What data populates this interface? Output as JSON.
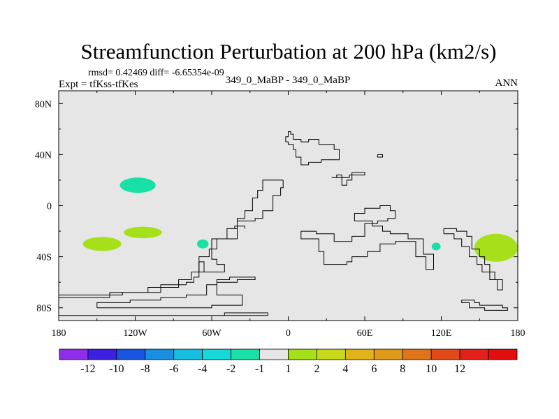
{
  "chart_data": {
    "type": "heatmap",
    "title": "Streamfunction Perturbation at 200 hPa (km2/s)",
    "stats": "rmsd= 0.42469 diff= -6.65354e-09",
    "left_label": "Expt = tfKss-tfKes",
    "center_label": "349_0_MaBP - 349_0_MaBP",
    "right_label": "ANN",
    "xlim": [
      -180,
      180
    ],
    "ylim": [
      -90,
      90
    ],
    "x_ticks": [
      {
        "value": -180,
        "label": "180"
      },
      {
        "value": -120,
        "label": "120W"
      },
      {
        "value": -60,
        "label": "60W"
      },
      {
        "value": 0,
        "label": "0"
      },
      {
        "value": 60,
        "label": "60E"
      },
      {
        "value": 120,
        "label": "120E"
      },
      {
        "value": 180,
        "label": "180"
      }
    ],
    "y_ticks": [
      {
        "value": 80,
        "label": "80N"
      },
      {
        "value": 40,
        "label": "40N"
      },
      {
        "value": 0,
        "label": "0"
      },
      {
        "value": -40,
        "label": "40S"
      },
      {
        "value": -80,
        "label": "80S"
      }
    ],
    "background_color": "#e6e6e6",
    "colorbar": {
      "colors": [
        "#8f2ee8",
        "#3c20e0",
        "#1a55e0",
        "#1a8ee0",
        "#18bde0",
        "#18d8d8",
        "#18e0a6",
        "#e6e6e6",
        "#a6e01a",
        "#c8d81a",
        "#e0b41a",
        "#e09a1a",
        "#e0741a",
        "#e04a1a",
        "#e0201a",
        "#e00e0e"
      ],
      "labels": [
        "-12",
        "-10",
        "-8",
        "-6",
        "-4",
        "-2",
        "-1",
        "1",
        "2",
        "4",
        "6",
        "8",
        "10",
        "12"
      ]
    },
    "anomalies": [
      {
        "name": "north-pacific-negative",
        "lon": -118,
        "lat": 16,
        "rlon": 14,
        "rlat": 6,
        "color": "#18e0a6"
      },
      {
        "name": "south-pacific-west-positive",
        "lon": -146,
        "lat": -30,
        "rlon": 15,
        "rlat": 5.5,
        "color": "#a6e01a"
      },
      {
        "name": "south-pacific-central-positive",
        "lon": -114,
        "lat": -21,
        "rlon": 15,
        "rlat": 4.5,
        "color": "#a6e01a"
      },
      {
        "name": "south-america-negative",
        "lon": -67,
        "lat": -30,
        "rlon": 4.5,
        "rlat": 3.5,
        "color": "#18e0a6"
      },
      {
        "name": "indian-ocean-negative",
        "lon": 116,
        "lat": -32,
        "rlon": 3.5,
        "rlat": 3,
        "color": "#18e0a6"
      },
      {
        "name": "australia-positive",
        "lon": 163,
        "lat": -33,
        "rlon": 17,
        "rlat": 11,
        "color": "#a6e01a"
      }
    ],
    "coastlines": [
      [
        [
          -4,
          20
        ],
        [
          -4,
          14
        ],
        [
          -6,
          14
        ],
        [
          -6,
          8
        ],
        [
          -12,
          8
        ],
        [
          -12,
          -4
        ],
        [
          -20,
          -4
        ],
        [
          -20,
          -10
        ],
        [
          -26,
          -10
        ],
        [
          -26,
          -12
        ],
        [
          -40,
          -12
        ],
        [
          -40,
          -26
        ],
        [
          -60,
          -26
        ],
        [
          -60,
          -42
        ],
        [
          -56,
          -42
        ],
        [
          -56,
          -46
        ],
        [
          -50,
          -46
        ],
        [
          -50,
          -52
        ],
        [
          -70,
          -52
        ],
        [
          -70,
          -40
        ],
        [
          -62,
          -40
        ],
        [
          -62,
          -34
        ],
        [
          -56,
          -34
        ],
        [
          -56,
          -26
        ],
        [
          -48,
          -26
        ],
        [
          -48,
          -18
        ],
        [
          -40,
          -18
        ],
        [
          -40,
          -10
        ],
        [
          -34,
          -10
        ],
        [
          -34,
          -4
        ],
        [
          -28,
          -4
        ],
        [
          -28,
          6
        ],
        [
          -24,
          6
        ],
        [
          -24,
          12
        ],
        [
          -20,
          12
        ],
        [
          -20,
          20
        ],
        [
          -12,
          20
        ],
        [
          -4,
          20
        ]
      ],
      [
        [
          0,
          56
        ],
        [
          0,
          58
        ],
        [
          2,
          58
        ],
        [
          2,
          56
        ],
        [
          4,
          56
        ],
        [
          4,
          52
        ],
        [
          10,
          52
        ],
        [
          10,
          50
        ],
        [
          16,
          50
        ],
        [
          16,
          52
        ],
        [
          24,
          52
        ],
        [
          24,
          48
        ],
        [
          36,
          48
        ],
        [
          36,
          44
        ],
        [
          40,
          44
        ],
        [
          40,
          36
        ],
        [
          26,
          36
        ],
        [
          26,
          34
        ],
        [
          16,
          34
        ],
        [
          16,
          32
        ],
        [
          10,
          32
        ],
        [
          10,
          38
        ],
        [
          6,
          38
        ],
        [
          6,
          44
        ],
        [
          4,
          44
        ],
        [
          4,
          48
        ],
        [
          0,
          48
        ],
        [
          0,
          50
        ],
        [
          -2,
          50
        ],
        [
          -2,
          54
        ],
        [
          0,
          54
        ],
        [
          0,
          56
        ]
      ],
      [
        [
          34,
          22
        ],
        [
          38,
          22
        ],
        [
          38,
          24
        ],
        [
          42,
          24
        ],
        [
          42,
          16
        ],
        [
          46,
          16
        ],
        [
          46,
          20
        ],
        [
          50,
          20
        ],
        [
          50,
          26
        ],
        [
          60,
          26
        ],
        [
          60,
          24
        ],
        [
          48,
          24
        ],
        [
          48,
          22
        ],
        [
          34,
          22
        ]
      ],
      [
        [
          70,
          40
        ],
        [
          74,
          40
        ],
        [
          74,
          38
        ],
        [
          70,
          38
        ],
        [
          70,
          40
        ]
      ],
      [
        [
          10,
          -20
        ],
        [
          10,
          -26
        ],
        [
          24,
          -26
        ],
        [
          24,
          -36
        ],
        [
          28,
          -36
        ],
        [
          28,
          -46
        ],
        [
          46,
          -46
        ],
        [
          46,
          -44
        ],
        [
          50,
          -44
        ],
        [
          50,
          -40
        ],
        [
          62,
          -40
        ],
        [
          62,
          -36
        ],
        [
          72,
          -36
        ],
        [
          72,
          -30
        ],
        [
          84,
          -30
        ],
        [
          84,
          -28
        ],
        [
          100,
          -28
        ],
        [
          100,
          -40
        ],
        [
          108,
          -40
        ],
        [
          108,
          -50
        ],
        [
          114,
          -50
        ],
        [
          114,
          -38
        ],
        [
          106,
          -38
        ],
        [
          106,
          -26
        ],
        [
          94,
          -26
        ],
        [
          94,
          -22
        ],
        [
          80,
          -22
        ],
        [
          80,
          -20
        ],
        [
          74,
          -20
        ],
        [
          74,
          -16
        ],
        [
          66,
          -16
        ],
        [
          66,
          -12
        ],
        [
          52,
          -12
        ],
        [
          52,
          -6
        ],
        [
          60,
          -6
        ],
        [
          60,
          -2
        ],
        [
          72,
          -2
        ],
        [
          72,
          0
        ],
        [
          80,
          0
        ],
        [
          80,
          -4
        ],
        [
          84,
          -4
        ],
        [
          84,
          -10
        ],
        [
          78,
          -10
        ],
        [
          78,
          -12
        ],
        [
          70,
          -12
        ],
        [
          70,
          -14
        ],
        [
          60,
          -14
        ],
        [
          60,
          -24
        ],
        [
          50,
          -24
        ],
        [
          50,
          -28
        ],
        [
          36,
          -28
        ],
        [
          36,
          -22
        ],
        [
          22,
          -22
        ],
        [
          22,
          -20
        ],
        [
          10,
          -20
        ]
      ],
      [
        [
          122,
          -22
        ],
        [
          122,
          -18
        ],
        [
          132,
          -18
        ],
        [
          132,
          -20
        ],
        [
          140,
          -20
        ],
        [
          140,
          -24
        ],
        [
          144,
          -24
        ],
        [
          144,
          -34
        ],
        [
          150,
          -34
        ],
        [
          150,
          -40
        ],
        [
          154,
          -40
        ],
        [
          154,
          -46
        ],
        [
          158,
          -46
        ],
        [
          158,
          -52
        ],
        [
          162,
          -52
        ],
        [
          162,
          -58
        ],
        [
          168,
          -58
        ],
        [
          168,
          -66
        ],
        [
          164,
          -66
        ],
        [
          164,
          -58
        ],
        [
          158,
          -58
        ],
        [
          158,
          -52
        ],
        [
          152,
          -52
        ],
        [
          152,
          -46
        ],
        [
          148,
          -46
        ],
        [
          148,
          -40
        ],
        [
          142,
          -40
        ],
        [
          142,
          -32
        ],
        [
          136,
          -32
        ],
        [
          136,
          -26
        ],
        [
          130,
          -26
        ],
        [
          130,
          -22
        ],
        [
          122,
          -22
        ]
      ],
      [
        [
          -180,
          -70
        ],
        [
          -130,
          -70
        ],
        [
          -130,
          -68
        ],
        [
          -100,
          -68
        ],
        [
          -100,
          -62
        ],
        [
          -80,
          -62
        ],
        [
          -80,
          -60
        ],
        [
          -74,
          -60
        ],
        [
          -74,
          -56
        ],
        [
          -70,
          -56
        ],
        [
          -70,
          -44
        ],
        [
          -66,
          -44
        ],
        [
          -66,
          -52
        ],
        [
          -76,
          -52
        ],
        [
          -76,
          -58
        ],
        [
          -86,
          -58
        ],
        [
          -86,
          -64
        ],
        [
          -110,
          -64
        ],
        [
          -110,
          -68
        ],
        [
          -140,
          -68
        ],
        [
          -140,
          -72
        ],
        [
          -180,
          -72
        ]
      ],
      [
        [
          -150,
          -80
        ],
        [
          -150,
          -76
        ],
        [
          -124,
          -76
        ],
        [
          -124,
          -74
        ],
        [
          -100,
          -74
        ],
        [
          -100,
          -72
        ],
        [
          -80,
          -72
        ],
        [
          -80,
          -70
        ],
        [
          -64,
          -70
        ],
        [
          -64,
          -62
        ],
        [
          -56,
          -62
        ],
        [
          -56,
          -58
        ],
        [
          -46,
          -58
        ],
        [
          -46,
          -56
        ],
        [
          -26,
          -56
        ],
        [
          -26,
          -58
        ],
        [
          -40,
          -58
        ],
        [
          -40,
          -60
        ],
        [
          -56,
          -60
        ],
        [
          -56,
          -70
        ],
        [
          -36,
          -70
        ],
        [
          -36,
          -78
        ],
        [
          -60,
          -78
        ],
        [
          -60,
          -80
        ],
        [
          -150,
          -80
        ]
      ],
      [
        [
          -180,
          -86
        ],
        [
          -16,
          -86
        ],
        [
          -16,
          -84
        ],
        [
          -50,
          -84
        ],
        [
          -50,
          -86
        ]
      ],
      [
        [
          136,
          -74
        ],
        [
          146,
          -74
        ],
        [
          146,
          -76
        ],
        [
          150,
          -76
        ],
        [
          150,
          -78
        ],
        [
          168,
          -78
        ],
        [
          168,
          -80
        ],
        [
          172,
          -80
        ],
        [
          172,
          -82
        ],
        [
          154,
          -82
        ],
        [
          154,
          -80
        ],
        [
          142,
          -80
        ],
        [
          142,
          -76
        ],
        [
          136,
          -76
        ],
        [
          136,
          -74
        ]
      ],
      [
        [
          -42,
          -18
        ],
        [
          -42,
          -16
        ],
        [
          -34,
          -16
        ],
        [
          -34,
          -18
        ]
      ]
    ]
  }
}
